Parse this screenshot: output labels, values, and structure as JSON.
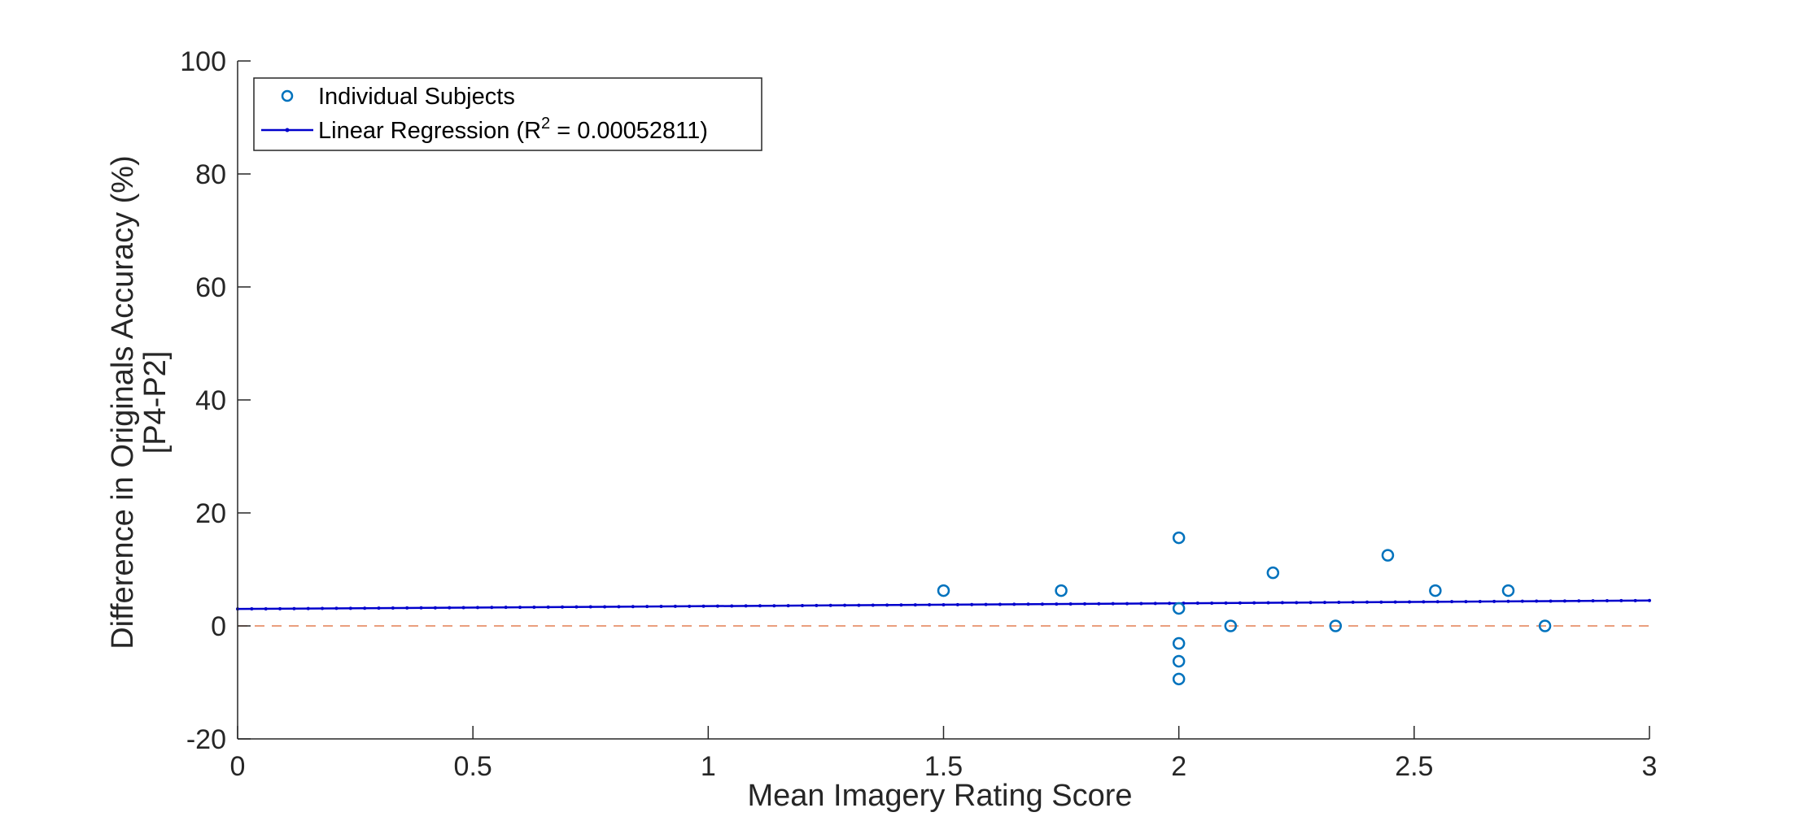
{
  "chart_data": {
    "type": "scatter",
    "title": "",
    "xlabel": "Mean Imagery Rating Score",
    "ylabel_lines": [
      "Difference in Originals Accuracy (%)",
      "[P4-P2]"
    ],
    "xlim": [
      0,
      3
    ],
    "ylim": [
      -20,
      100
    ],
    "xticks": [
      0,
      0.5,
      1,
      1.5,
      2,
      2.5,
      3
    ],
    "xtick_labels": [
      "0",
      "0.5",
      "1",
      "1.5",
      "2",
      "2.5",
      "3"
    ],
    "yticks": [
      -20,
      0,
      20,
      40,
      60,
      80,
      100
    ],
    "ytick_labels": [
      "-20",
      "0",
      "20",
      "40",
      "60",
      "80",
      "100"
    ],
    "grid": false,
    "legend_position": "top-left",
    "colors": {
      "subjects": "#0072BD",
      "regression": "#0000CC",
      "zero_line": "#D95319",
      "axis": "#262626"
    },
    "series": [
      {
        "name": "Individual Subjects",
        "kind": "scatter",
        "x": [
          1.5,
          1.75,
          2.0,
          2.0,
          2.0,
          2.0,
          2.0,
          2.11,
          2.2,
          2.333,
          2.444,
          2.545,
          2.7,
          2.778
        ],
        "y": [
          6.25,
          6.25,
          15.6,
          3.1,
          -3.1,
          -6.25,
          -9.4,
          0,
          9.4,
          0,
          12.5,
          6.25,
          6.25,
          0
        ]
      },
      {
        "name": "Linear Regression",
        "legend_label_parts": [
          "Linear Regression (R",
          "2",
          " = 0.00052811)"
        ],
        "kind": "line",
        "x": [
          0,
          3
        ],
        "y": [
          3.0,
          4.5
        ]
      },
      {
        "kind": "reference-line",
        "style": "dashed",
        "x": [
          0,
          3
        ],
        "y": [
          0,
          0
        ]
      }
    ]
  }
}
